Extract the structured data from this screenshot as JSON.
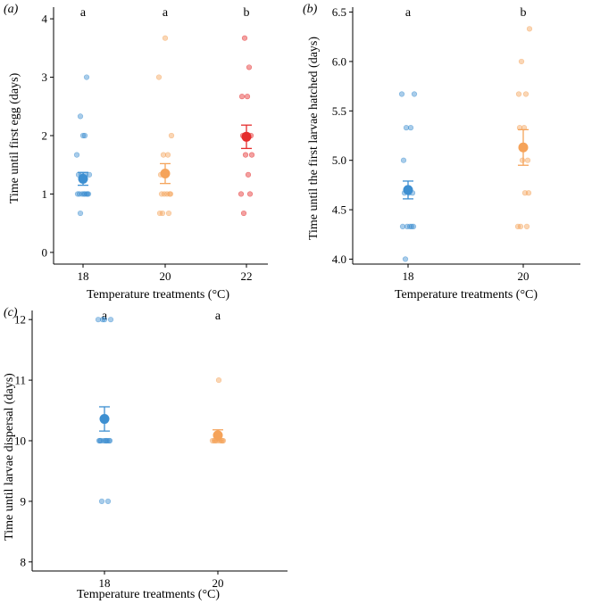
{
  "chart_data": [
    {
      "type": "scatter",
      "panel_label": "(a)",
      "xlabel": "Temperature treatments (°C)",
      "ylabel": "Time until first egg (days)",
      "ylim": [
        -0.2,
        4.2
      ],
      "yticks": [
        "0",
        "1",
        "2",
        "3",
        "4"
      ],
      "categories": [
        "18",
        "20",
        "22"
      ],
      "groups": [
        {
          "category": "18",
          "color": "#3d8fd1",
          "letter": "a",
          "mean": 1.26,
          "ci": [
            1.15,
            1.37
          ],
          "points": [
            0.67,
            1.0,
            1.0,
            1.0,
            1.0,
            1.0,
            1.0,
            1.0,
            1.0,
            1.33,
            1.33,
            1.33,
            1.33,
            1.67,
            2.0,
            2.0,
            2.33,
            3.0
          ]
        },
        {
          "category": "20",
          "color": "#f5a35a",
          "letter": "a",
          "mean": 1.35,
          "ci": [
            1.18,
            1.52
          ],
          "points": [
            0.67,
            0.67,
            0.67,
            1.0,
            1.0,
            1.0,
            1.0,
            1.0,
            1.33,
            1.33,
            1.67,
            1.67,
            2.0,
            3.0,
            3.67
          ]
        },
        {
          "category": "22",
          "color": "#e52d2d",
          "letter": "b",
          "mean": 1.98,
          "ci": [
            1.78,
            2.18
          ],
          "points": [
            0.67,
            1.0,
            1.0,
            1.33,
            1.67,
            1.67,
            2.0,
            2.0,
            2.67,
            2.67,
            3.17,
            3.67
          ]
        }
      ]
    },
    {
      "type": "scatter",
      "panel_label": "(b)",
      "xlabel": "Temperature treatments (°C)",
      "ylabel": "Time until the first larvae hatched (days)",
      "ylim": [
        3.95,
        6.55
      ],
      "yticks": [
        "4.0",
        "4.5",
        "5.0",
        "5.5",
        "6.0",
        "6.5"
      ],
      "categories": [
        "18",
        "20"
      ],
      "groups": [
        {
          "category": "18",
          "color": "#3d8fd1",
          "letter": "a",
          "mean": 4.7,
          "ci": [
            4.61,
            4.79
          ],
          "points": [
            4.0,
            4.33,
            4.33,
            4.33,
            4.33,
            4.33,
            4.67,
            4.67,
            4.67,
            5.0,
            5.33,
            5.33,
            5.67,
            5.67
          ]
        },
        {
          "category": "20",
          "color": "#f5a35a",
          "letter": "b",
          "mean": 5.13,
          "ci": [
            4.95,
            5.31
          ],
          "points": [
            4.33,
            4.33,
            4.33,
            4.67,
            4.67,
            5.0,
            5.0,
            5.33,
            5.33,
            5.67,
            5.67,
            6.0,
            6.33
          ]
        }
      ]
    },
    {
      "type": "scatter",
      "panel_label": "(c)",
      "xlabel": "Temperature treatments (°C)",
      "ylabel": "Time until larvae dispersal (days)",
      "ylim": [
        7.85,
        12.15
      ],
      "yticks": [
        "8",
        "9",
        "10",
        "11",
        "12"
      ],
      "categories": [
        "18",
        "20"
      ],
      "groups": [
        {
          "category": "18",
          "color": "#3d8fd1",
          "letter": "a",
          "mean": 10.36,
          "ci": [
            10.16,
            10.56
          ],
          "points": [
            9.0,
            9.0,
            10.0,
            10.0,
            10.0,
            10.0,
            10.0,
            10.0,
            10.0,
            10.0,
            10.0,
            12.0,
            12.0,
            12.0,
            12.0
          ]
        },
        {
          "category": "20",
          "color": "#f5a35a",
          "letter": "a",
          "mean": 10.09,
          "ci": [
            10.0,
            10.18
          ],
          "points": [
            10.0,
            10.0,
            10.0,
            10.0,
            10.0,
            10.0,
            10.0,
            10.0,
            11.0
          ]
        }
      ]
    }
  ]
}
